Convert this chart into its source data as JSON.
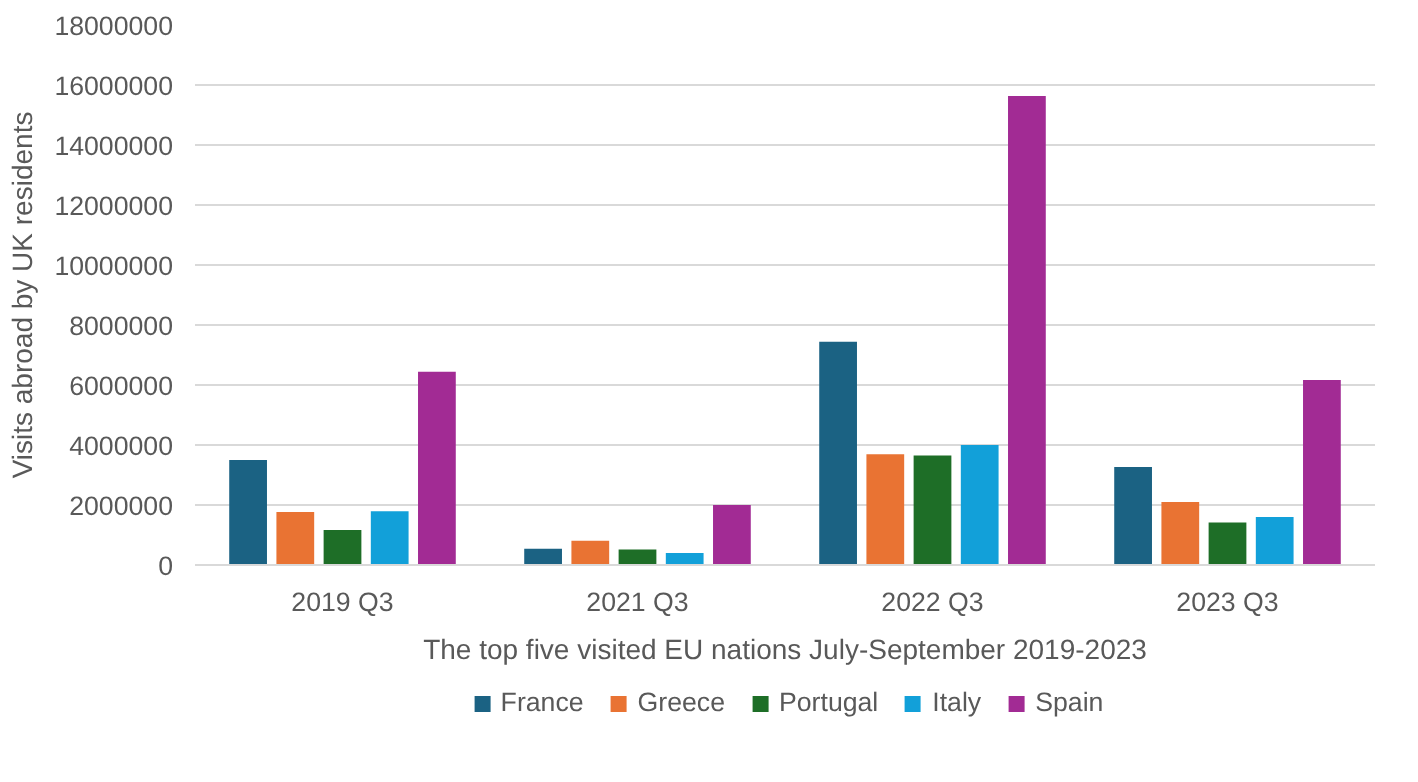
{
  "chart_data": {
    "type": "bar",
    "xlabel": "The top five visited EU nations July-September 2019-2023",
    "ylabel": "Visits abroad by UK residents",
    "categories": [
      "2019 Q3",
      "2021 Q3",
      "2022 Q3",
      "2023 Q3"
    ],
    "series": [
      {
        "name": "France",
        "color": "#1b6283",
        "values": [
          3500000,
          540000,
          7440000,
          3270000
        ]
      },
      {
        "name": "Greece",
        "color": "#e97333",
        "values": [
          1770000,
          810000,
          3690000,
          2100000
        ]
      },
      {
        "name": "Portugal",
        "color": "#1e6e27",
        "values": [
          1170000,
          520000,
          3650000,
          1420000
        ]
      },
      {
        "name": "Italy",
        "color": "#12a0d9",
        "values": [
          1790000,
          400000,
          4000000,
          1600000
        ]
      },
      {
        "name": "Spain",
        "color": "#a22b94",
        "values": [
          6440000,
          2000000,
          15630000,
          6170000
        ]
      }
    ],
    "ylim": [
      0,
      18000000
    ],
    "yticks": [
      0,
      2000000,
      4000000,
      6000000,
      8000000,
      10000000,
      12000000,
      14000000,
      16000000,
      18000000
    ],
    "grid": "y",
    "legend": "bottom"
  }
}
